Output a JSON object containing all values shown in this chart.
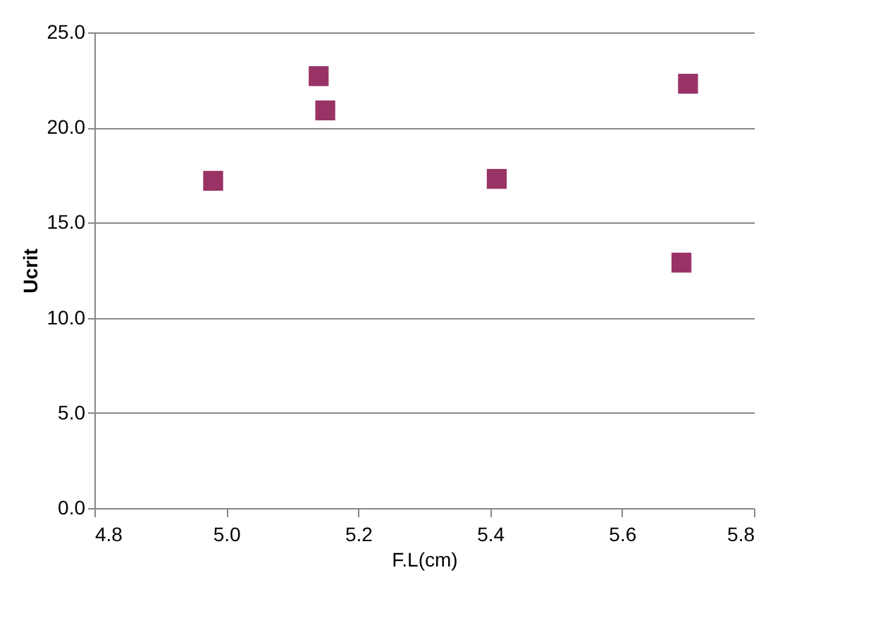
{
  "chart_data": {
    "type": "scatter",
    "xlabel": "F.L(cm)",
    "ylabel": "Ucrit",
    "x": [
      4.98,
      5.14,
      5.15,
      5.41,
      5.7,
      5.69
    ],
    "series": [
      {
        "color": "#993366",
        "values": [
          17.2,
          22.7,
          20.9,
          17.3,
          22.3,
          12.9
        ]
      }
    ],
    "xlim": [
      4.8,
      5.8
    ],
    "xticks": [
      {
        "value": 4.8,
        "label": "4.8"
      },
      {
        "value": 5.0,
        "label": "5.0"
      },
      {
        "value": 5.2,
        "label": "5.2"
      },
      {
        "value": 5.4,
        "label": "5.4"
      },
      {
        "value": 5.6,
        "label": "5.6"
      },
      {
        "value": 5.8,
        "label": "5.8"
      }
    ],
    "ylim": [
      0,
      25
    ],
    "yticks": [
      {
        "value": 0,
        "label": "0.0"
      },
      {
        "value": 5,
        "label": "5.0"
      },
      {
        "value": 10,
        "label": "10.0"
      },
      {
        "value": 15,
        "label": "15.0"
      },
      {
        "value": 20,
        "label": "20.0"
      },
      {
        "value": 25,
        "label": "25.0"
      }
    ],
    "grid": "y",
    "marker": "square",
    "legend": false
  }
}
